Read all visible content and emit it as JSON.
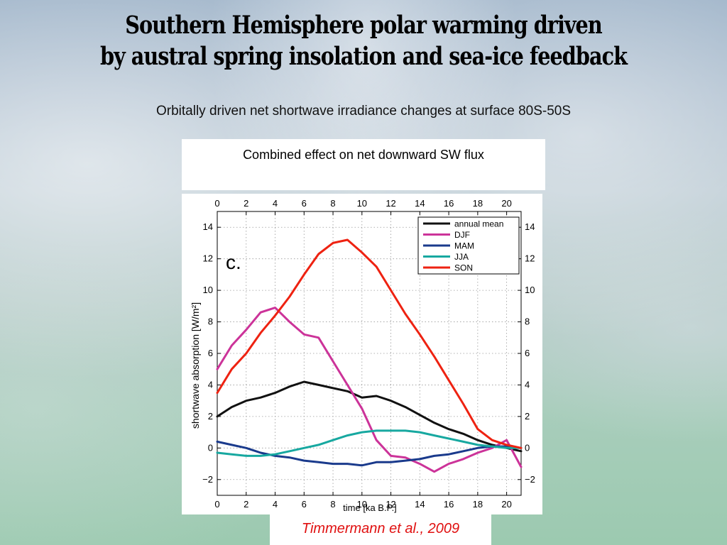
{
  "slide": {
    "title_line1": "Southern Hemisphere polar warming driven",
    "title_line2": "by austral spring insolation and sea-ice feedback",
    "subtitle": "Orbitally driven net shortwave irradiance changes  at surface 80S-50S",
    "panel_caption": "Combined effect on net downward SW flux",
    "citation": "Timmermann et al., 2009"
  },
  "colors": {
    "annual_mean": "#111111",
    "DJF": "#cc3399",
    "MAM": "#1a3a8c",
    "JJA": "#17a8a0",
    "SON": "#ee2211"
  },
  "chart_data": {
    "type": "line",
    "panel_label": "c.",
    "xlabel": "time [ka B.P.]",
    "ylabel": "shortwave absorption [W/m²]",
    "xlim": [
      0,
      21
    ],
    "ylim": [
      -3,
      15
    ],
    "x_ticks": [
      0,
      2,
      4,
      6,
      8,
      10,
      12,
      14,
      16,
      18,
      20
    ],
    "y_ticks": [
      -2,
      0,
      2,
      4,
      6,
      8,
      10,
      12,
      14
    ],
    "y_tick_labels": [
      "−2",
      "0",
      "2",
      "4",
      "6",
      "8",
      "10",
      "12",
      "14"
    ],
    "grid": true,
    "legend_position": "top-right",
    "x": [
      0,
      1,
      2,
      3,
      4,
      5,
      6,
      7,
      8,
      9,
      10,
      11,
      12,
      13,
      14,
      15,
      16,
      17,
      18,
      19,
      20,
      21
    ],
    "series": [
      {
        "name": "annual mean",
        "color_key": "annual_mean",
        "values": [
          2.0,
          2.6,
          3.0,
          3.2,
          3.5,
          3.9,
          4.2,
          4.0,
          3.8,
          3.6,
          3.2,
          3.3,
          3.0,
          2.6,
          2.1,
          1.6,
          1.2,
          0.9,
          0.5,
          0.2,
          0.0,
          -0.2
        ]
      },
      {
        "name": "DJF",
        "color_key": "DJF",
        "values": [
          5.0,
          6.5,
          7.5,
          8.6,
          8.9,
          8.0,
          7.2,
          7.0,
          5.5,
          4.0,
          2.5,
          0.5,
          -0.5,
          -0.6,
          -1.0,
          -1.5,
          -1.0,
          -0.7,
          -0.3,
          0.0,
          0.5,
          -1.2
        ]
      },
      {
        "name": "MAM",
        "color_key": "MAM",
        "values": [
          0.4,
          0.2,
          0.0,
          -0.3,
          -0.5,
          -0.6,
          -0.8,
          -0.9,
          -1.0,
          -1.0,
          -1.1,
          -0.9,
          -0.9,
          -0.8,
          -0.7,
          -0.5,
          -0.4,
          -0.2,
          0.0,
          0.1,
          0.1,
          0.0
        ]
      },
      {
        "name": "JJA",
        "color_key": "JJA",
        "values": [
          -0.3,
          -0.4,
          -0.5,
          -0.5,
          -0.4,
          -0.2,
          0.0,
          0.2,
          0.5,
          0.8,
          1.0,
          1.1,
          1.1,
          1.1,
          1.0,
          0.8,
          0.6,
          0.4,
          0.2,
          0.1,
          0.0,
          0.0
        ]
      },
      {
        "name": "SON",
        "color_key": "SON",
        "values": [
          3.5,
          5.0,
          6.0,
          7.3,
          8.4,
          9.6,
          11.0,
          12.3,
          13.0,
          13.2,
          12.4,
          11.5,
          10.0,
          8.5,
          7.2,
          5.8,
          4.3,
          2.8,
          1.2,
          0.5,
          0.2,
          0.0
        ]
      }
    ]
  }
}
